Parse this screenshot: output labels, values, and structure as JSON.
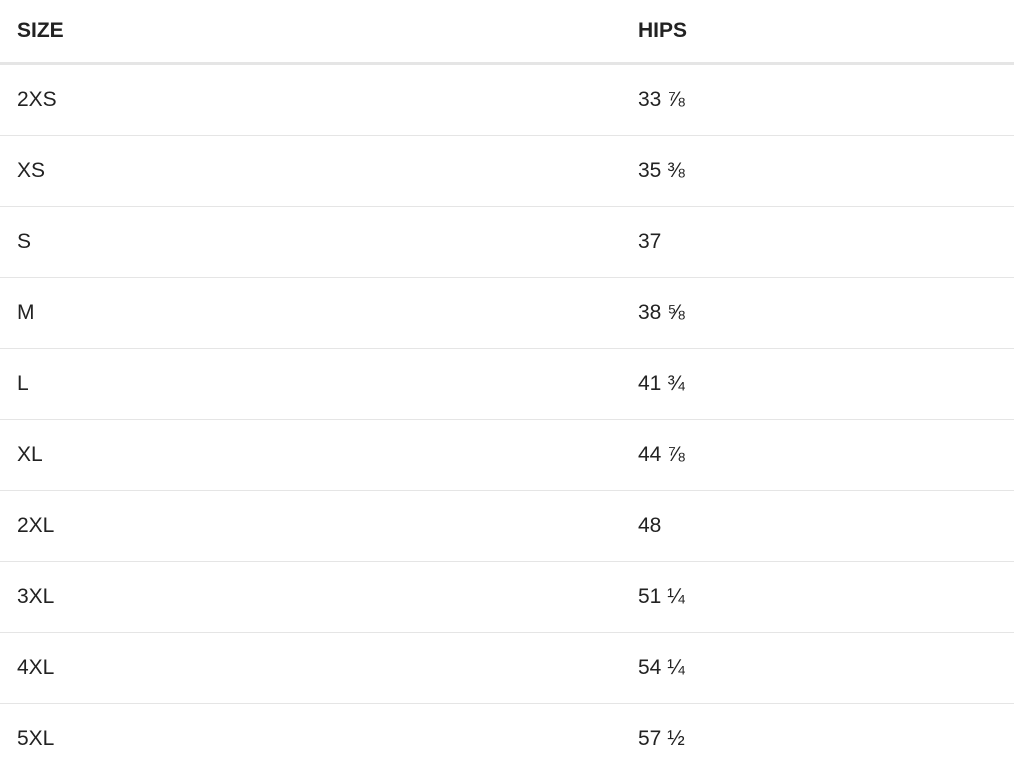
{
  "table": {
    "headers": [
      "SIZE",
      "HIPS"
    ],
    "rows": [
      [
        "2XS",
        "33 ⅞"
      ],
      [
        "XS",
        "35 ⅜"
      ],
      [
        "S",
        "37"
      ],
      [
        "M",
        "38 ⅝"
      ],
      [
        "L",
        "41 ¾"
      ],
      [
        "XL",
        "44 ⅞"
      ],
      [
        "2XL",
        "48"
      ],
      [
        "3XL",
        "51 ¼"
      ],
      [
        "4XL",
        "54 ¼"
      ],
      [
        "5XL",
        "57 ½"
      ]
    ]
  }
}
